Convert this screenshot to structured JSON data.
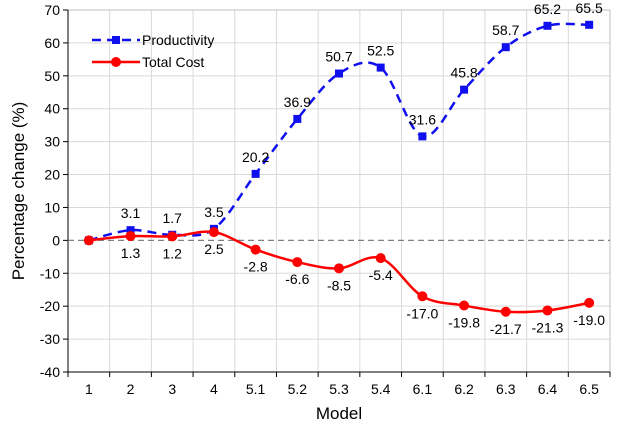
{
  "chart_data": {
    "type": "line",
    "xlabel": "Model",
    "ylabel": "Percentage change (%)",
    "categories": [
      "1",
      "2",
      "3",
      "4",
      "5.1",
      "5.2",
      "5.3",
      "5.4",
      "6.1",
      "6.2",
      "6.3",
      "6.4",
      "6.5"
    ],
    "ylim": [
      -40,
      70
    ],
    "yticks": [
      -40,
      -30,
      -20,
      -10,
      0,
      10,
      20,
      30,
      40,
      50,
      60,
      70
    ],
    "grid": true,
    "legend": "top-left",
    "series": [
      {
        "name": "Productivity",
        "color": "#1010ee",
        "marker": "square",
        "line": "dashed",
        "values": [
          0,
          3.1,
          1.7,
          3.5,
          20.2,
          36.9,
          50.7,
          52.5,
          31.6,
          45.8,
          58.7,
          65.2,
          65.5
        ],
        "labels": [
          "",
          "3.1",
          "1.7",
          "3.5",
          "20.2",
          "36.9",
          "50.7",
          "52.5",
          "31.6",
          "45.8",
          "58.7",
          "65.2",
          "65.5"
        ]
      },
      {
        "name": "Total Cost",
        "color": "#ff0000",
        "marker": "circle",
        "line": "solid",
        "values": [
          0,
          1.3,
          1.2,
          2.5,
          -2.8,
          -6.6,
          -8.5,
          -5.4,
          -17.0,
          -19.8,
          -21.7,
          -21.3,
          -19.0
        ],
        "labels": [
          "",
          "1.3",
          "1.2",
          "2.5",
          "-2.8",
          "-6.6",
          "-8.5",
          "-5.4",
          "-17.0",
          "-19.8",
          "-21.7",
          "-21.3",
          "-19.0"
        ]
      }
    ]
  }
}
